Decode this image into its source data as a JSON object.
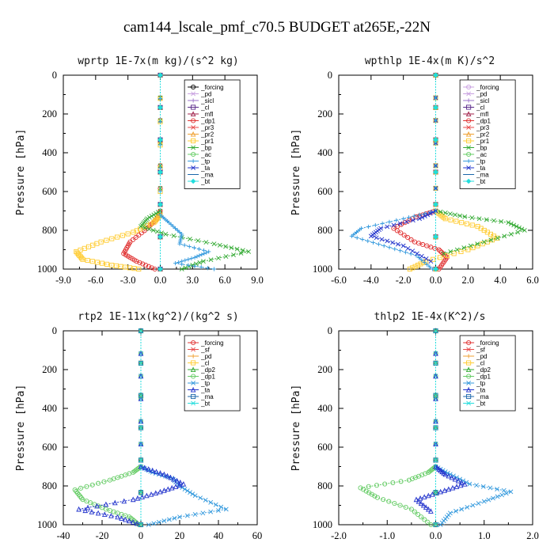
{
  "title": "cam144_lscale_pmf_c70.5  BUDGET at265E,-22N",
  "chart_data": [
    {
      "type": "line",
      "title": "wprtp  1E-7x(m kg)/(s^2 kg)",
      "ylabel": "Pressure [hPa]",
      "xlim": [
        -9,
        9
      ],
      "ylim": [
        1000,
        0
      ],
      "xticks": [
        "-9.0",
        "-6.0",
        "-3.0",
        "0.0",
        "3.0",
        "6.0",
        "9.0"
      ],
      "yticks": [
        "0",
        "200",
        "400",
        "600",
        "800",
        "1000"
      ],
      "series": [
        {
          "name": "_forcing",
          "color": "#000000",
          "x": [
            0,
            0
          ],
          "y": [
            0,
            1000
          ]
        },
        {
          "name": "_pd",
          "color": "#c8a0e0",
          "x": [
            0,
            0
          ],
          "y": [
            0,
            1000
          ]
        },
        {
          "name": "_sicl",
          "color": "#9a70c8",
          "x": [
            0,
            0
          ],
          "y": [
            0,
            1000
          ]
        },
        {
          "name": "_cl",
          "color": "#5a2a8a",
          "x": [
            0,
            0
          ],
          "y": [
            0,
            1000
          ]
        },
        {
          "name": "_mfl",
          "color": "#a0204a",
          "x": [
            0,
            0
          ],
          "y": [
            0,
            1000
          ]
        },
        {
          "name": "_dp1",
          "color": "#e03030",
          "x": [
            0,
            0,
            -0.3,
            -1.2,
            -2.8,
            -3.4,
            -2.2,
            -0.5
          ],
          "y": [
            0,
            700,
            740,
            790,
            860,
            920,
            960,
            1000
          ]
        },
        {
          "name": "_pr3",
          "color": "#e84848",
          "x": [
            0,
            0
          ],
          "y": [
            0,
            1000
          ]
        },
        {
          "name": "_pr2",
          "color": "#f0a030",
          "x": [
            0,
            0
          ],
          "y": [
            0,
            1000
          ]
        },
        {
          "name": "_pr1",
          "color": "#ffcc33",
          "x": [
            0,
            0,
            -0.6,
            -2.5,
            -5.5,
            -7.8,
            -7.2,
            -4.5,
            -2.0
          ],
          "y": [
            0,
            720,
            760,
            810,
            860,
            910,
            950,
            980,
            1000
          ]
        },
        {
          "name": "_bp",
          "color": "#33aa33",
          "x": [
            0,
            0,
            -1.2,
            -1.8,
            0.5,
            5.0,
            8.2,
            4.0,
            2.0
          ],
          "y": [
            0,
            700,
            740,
            780,
            820,
            870,
            910,
            960,
            1000
          ]
        },
        {
          "name": "_ac",
          "color": "#66cc66",
          "x": [
            0,
            0
          ],
          "y": [
            0,
            1000
          ]
        },
        {
          "name": "_tp",
          "color": "#3399dd",
          "x": [
            0,
            0,
            0.8,
            2.0,
            1.8,
            4.5,
            3.2,
            1.4,
            5.0
          ],
          "y": [
            0,
            720,
            760,
            820,
            870,
            910,
            940,
            970,
            1000
          ]
        },
        {
          "name": "_ta",
          "color": "#2233cc",
          "x": [
            0,
            0
          ],
          "y": [
            0,
            1000
          ]
        },
        {
          "name": "_ma",
          "color": "#1a66aa",
          "x": [
            0,
            0
          ],
          "y": [
            0,
            1000
          ]
        },
        {
          "name": "_bt",
          "color": "#22dddd",
          "x": [
            0,
            0
          ],
          "y": [
            0,
            1000
          ]
        }
      ]
    },
    {
      "type": "line",
      "title": "wpthlp  1E-4x(m K)/s^2",
      "ylabel": "Pressure [hPa]",
      "xlim": [
        -6,
        6
      ],
      "ylim": [
        1000,
        0
      ],
      "xticks": [
        "-6.0",
        "-4.0",
        "-2.0",
        "0.0",
        "2.0",
        "4.0",
        "6.0"
      ],
      "yticks": [
        "0",
        "200",
        "400",
        "600",
        "800",
        "1000"
      ],
      "series": [
        {
          "name": "_forcing",
          "color": "#c8a0e0",
          "x": [
            0,
            0
          ],
          "y": [
            0,
            1000
          ]
        },
        {
          "name": "_pd",
          "color": "#c8a0e0",
          "x": [
            0,
            0
          ],
          "y": [
            0,
            1000
          ]
        },
        {
          "name": "_sicl",
          "color": "#9a70c8",
          "x": [
            0,
            0
          ],
          "y": [
            0,
            1000
          ]
        },
        {
          "name": "_cl",
          "color": "#5a2a8a",
          "x": [
            0,
            0
          ],
          "y": [
            0,
            1000
          ]
        },
        {
          "name": "_mfl",
          "color": "#a0204a",
          "x": [
            0,
            0
          ],
          "y": [
            0,
            1000
          ]
        },
        {
          "name": "_dp1",
          "color": "#e03030",
          "x": [
            0,
            0,
            -1.2,
            -2.6,
            -1.3,
            0.2,
            0.7,
            0.2
          ],
          "y": [
            0,
            700,
            730,
            790,
            860,
            900,
            940,
            1000
          ]
        },
        {
          "name": "_pr3",
          "color": "#e84848",
          "x": [
            0,
            0
          ],
          "y": [
            0,
            1000
          ]
        },
        {
          "name": "_pr2",
          "color": "#f0a030",
          "x": [
            0,
            0
          ],
          "y": [
            0,
            1000
          ]
        },
        {
          "name": "_pr1",
          "color": "#ffcc33",
          "x": [
            0,
            0,
            0.6,
            2.6,
            3.8,
            2.0,
            -0.6,
            -1.6
          ],
          "y": [
            0,
            700,
            740,
            780,
            840,
            900,
            960,
            1000
          ]
        },
        {
          "name": "_bp",
          "color": "#33aa33",
          "x": [
            0,
            0,
            1.8,
            4.5,
            5.5,
            3.0,
            0.5
          ],
          "y": [
            0,
            700,
            730,
            760,
            800,
            860,
            920
          ]
        },
        {
          "name": "_ac",
          "color": "#66cc66",
          "x": [
            0,
            0
          ],
          "y": [
            0,
            1000
          ]
        },
        {
          "name": "_tp",
          "color": "#3399dd",
          "x": [
            0,
            0,
            -2.0,
            -4.6,
            -5.2,
            -3.2,
            -1.2,
            -0.2
          ],
          "y": [
            0,
            700,
            740,
            790,
            830,
            880,
            930,
            1000
          ]
        },
        {
          "name": "_ta",
          "color": "#2233cc",
          "x": [
            0,
            0,
            -1.0,
            -3.4,
            -4.0,
            -2.0,
            -0.3
          ],
          "y": [
            0,
            700,
            740,
            790,
            830,
            880,
            960
          ]
        },
        {
          "name": "_ma",
          "color": "#1a66aa",
          "x": [
            0,
            0
          ],
          "y": [
            0,
            1000
          ]
        },
        {
          "name": "_bt",
          "color": "#22dddd",
          "x": [
            0,
            0
          ],
          "y": [
            0,
            1000
          ]
        }
      ]
    },
    {
      "type": "line",
      "title": "rtp2  1E-11x(kg^2)/(kg^2 s)",
      "ylabel": "Pressure [hPa]",
      "xlim": [
        -40,
        60
      ],
      "ylim": [
        1000,
        0
      ],
      "xticks": [
        "-40",
        "-20",
        "0",
        "20",
        "40",
        "60"
      ],
      "yticks": [
        "0",
        "200",
        "400",
        "600",
        "800",
        "1000"
      ],
      "series": [
        {
          "name": "_forcing",
          "color": "#e03030",
          "x": [
            0,
            0
          ],
          "y": [
            0,
            1000
          ]
        },
        {
          "name": "_sf",
          "color": "#e84848",
          "x": [
            0,
            0
          ],
          "y": [
            0,
            1000
          ]
        },
        {
          "name": "_pd",
          "color": "#f0a030",
          "x": [
            0,
            0
          ],
          "y": [
            0,
            1000
          ]
        },
        {
          "name": "_cl",
          "color": "#ffcc33",
          "x": [
            0,
            0
          ],
          "y": [
            0,
            1000
          ]
        },
        {
          "name": "_dp2",
          "color": "#33aa33",
          "x": [
            0,
            0
          ],
          "y": [
            0,
            1000
          ]
        },
        {
          "name": "_dp1",
          "color": "#66cc66",
          "x": [
            0,
            0,
            -4,
            -16,
            -34,
            -30,
            -18,
            -6,
            -1
          ],
          "y": [
            0,
            700,
            730,
            770,
            820,
            870,
            920,
            960,
            1000
          ]
        },
        {
          "name": "_tp",
          "color": "#3399dd",
          "x": [
            0,
            0,
            6,
            16,
            20,
            28,
            44,
            20,
            4
          ],
          "y": [
            0,
            700,
            730,
            760,
            800,
            850,
            920,
            960,
            1000
          ]
        },
        {
          "name": "_ta",
          "color": "#2233cc",
          "x": [
            0,
            0,
            12,
            22,
            10,
            -4,
            -32,
            -12,
            0
          ],
          "y": [
            0,
            700,
            740,
            790,
            830,
            870,
            920,
            960,
            1000
          ]
        },
        {
          "name": "_ma",
          "color": "#1a66aa",
          "x": [
            0,
            0
          ],
          "y": [
            0,
            1000
          ]
        },
        {
          "name": "_bt",
          "color": "#22dddd",
          "x": [
            0,
            0
          ],
          "y": [
            0,
            1000
          ]
        }
      ]
    },
    {
      "type": "line",
      "title": "thlp2  1E-4x(K^2)/s",
      "ylabel": "Pressure [hPa]",
      "xlim": [
        -2,
        2
      ],
      "ylim": [
        1000,
        0
      ],
      "xticks": [
        "-2.0",
        "-1.0",
        "0.0",
        "1.0",
        "2.0"
      ],
      "yticks": [
        "0",
        "200",
        "400",
        "600",
        "800",
        "1000"
      ],
      "series": [
        {
          "name": "_forcing",
          "color": "#e03030",
          "x": [
            0,
            0
          ],
          "y": [
            0,
            1000
          ]
        },
        {
          "name": "_sf",
          "color": "#e84848",
          "x": [
            0,
            0
          ],
          "y": [
            0,
            1000
          ]
        },
        {
          "name": "_pd",
          "color": "#f0a030",
          "x": [
            0,
            0
          ],
          "y": [
            0,
            1000
          ]
        },
        {
          "name": "_cl",
          "color": "#ffcc33",
          "x": [
            0,
            0
          ],
          "y": [
            0,
            1000
          ]
        },
        {
          "name": "_dp2",
          "color": "#33aa33",
          "x": [
            0,
            0
          ],
          "y": [
            0,
            1000
          ]
        },
        {
          "name": "_dp1",
          "color": "#66cc66",
          "x": [
            0,
            0,
            -0.15,
            -0.55,
            -1.55,
            -1.2,
            -0.5,
            -0.1
          ],
          "y": [
            0,
            700,
            730,
            770,
            810,
            860,
            920,
            1000
          ]
        },
        {
          "name": "_tp",
          "color": "#3399dd",
          "x": [
            0,
            0,
            0.3,
            0.7,
            1.55,
            1.0,
            0.3,
            0.1
          ],
          "y": [
            0,
            700,
            740,
            790,
            830,
            880,
            940,
            1000
          ]
        },
        {
          "name": "_ta",
          "color": "#2233cc",
          "x": [
            0,
            0,
            0.2,
            0.6,
            0.1,
            -0.4,
            -0.1
          ],
          "y": [
            0,
            700,
            740,
            790,
            830,
            870,
            930
          ]
        },
        {
          "name": "_ma",
          "color": "#1a66aa",
          "x": [
            0,
            0
          ],
          "y": [
            0,
            1000
          ]
        },
        {
          "name": "_bt",
          "color": "#22dddd",
          "x": [
            0,
            0
          ],
          "y": [
            0,
            1000
          ]
        }
      ]
    }
  ]
}
